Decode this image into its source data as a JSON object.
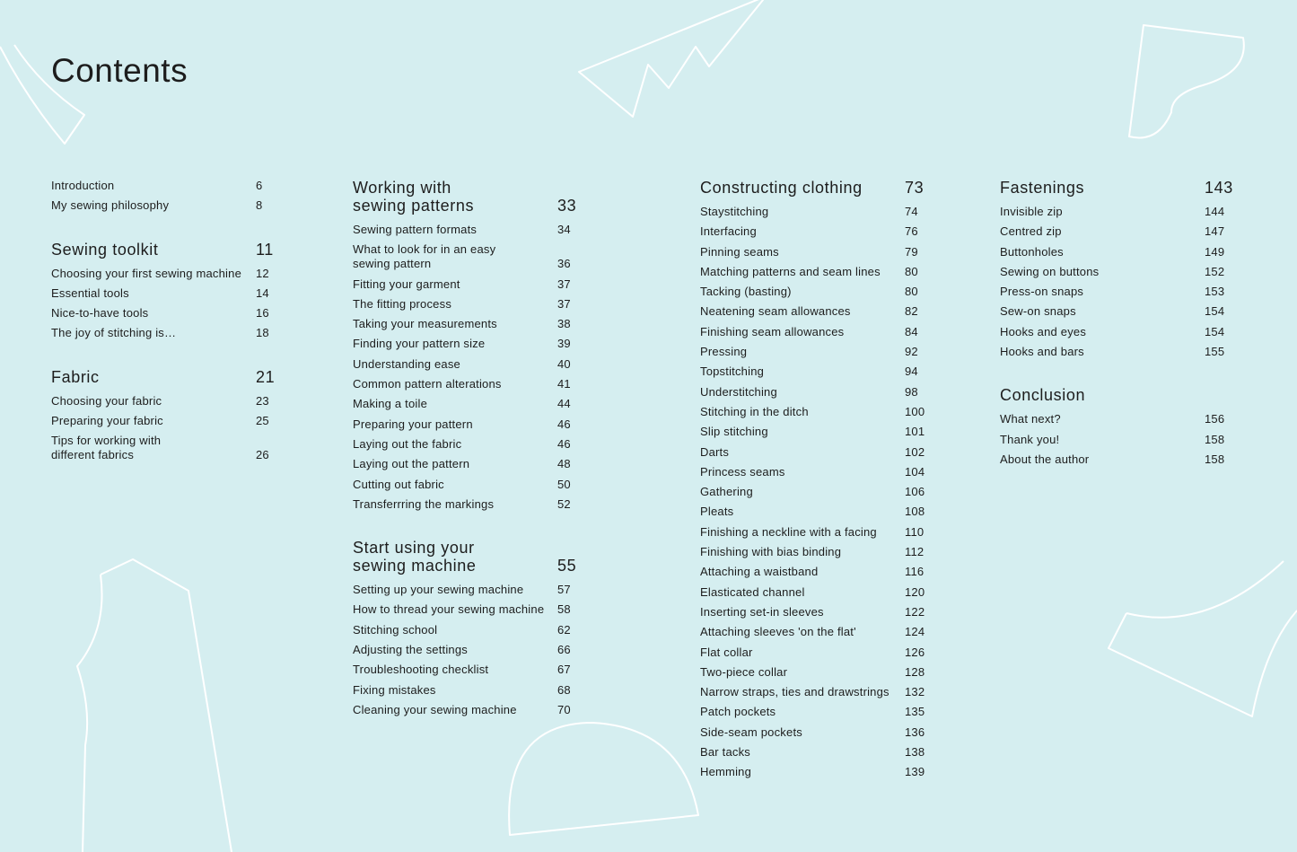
{
  "title": "Contents",
  "columns": [
    {
      "sections": [
        {
          "entries": [
            {
              "label": "Introduction",
              "page": 6
            },
            {
              "label": "My sewing philosophy",
              "page": 8
            }
          ]
        },
        {
          "title": "Sewing toolkit",
          "page": 11,
          "entries": [
            {
              "label": "Choosing your first sewing machine",
              "page": 12
            },
            {
              "label": "Essential tools",
              "page": 14
            },
            {
              "label": "Nice-to-have tools",
              "page": 16
            },
            {
              "label": "The joy of stitching is…",
              "page": 18
            }
          ]
        },
        {
          "title": "Fabric",
          "page": 21,
          "entries": [
            {
              "label": "Choosing your fabric",
              "page": 23
            },
            {
              "label": "Preparing your fabric",
              "page": 25
            },
            {
              "label": "Tips for working with\ndifferent fabrics",
              "page": 26
            }
          ]
        }
      ]
    },
    {
      "sections": [
        {
          "title": "Working with\nsewing patterns",
          "page": 33,
          "entries": [
            {
              "label": "Sewing pattern formats",
              "page": 34
            },
            {
              "label": "What to look for in an easy\nsewing pattern",
              "page": 36
            },
            {
              "label": "Fitting your garment",
              "page": 37
            },
            {
              "label": "The fitting process",
              "page": 37
            },
            {
              "label": "Taking your measurements",
              "page": 38
            },
            {
              "label": "Finding your pattern size",
              "page": 39
            },
            {
              "label": "Understanding ease",
              "page": 40
            },
            {
              "label": "Common pattern alterations",
              "page": 41
            },
            {
              "label": "Making a toile",
              "page": 44
            },
            {
              "label": "Preparing your pattern",
              "page": 46
            },
            {
              "label": "Laying out the fabric",
              "page": 46
            },
            {
              "label": "Laying out the pattern",
              "page": 48
            },
            {
              "label": "Cutting out fabric",
              "page": 50
            },
            {
              "label": "Transferrring the markings",
              "page": 52
            }
          ]
        },
        {
          "title": "Start using your\nsewing machine",
          "page": 55,
          "entries": [
            {
              "label": "Setting up your sewing machine",
              "page": 57
            },
            {
              "label": "How to thread your sewing machine",
              "page": 58
            },
            {
              "label": "Stitching school",
              "page": 62
            },
            {
              "label": "Adjusting the settings",
              "page": 66
            },
            {
              "label": "Troubleshooting checklist",
              "page": 67
            },
            {
              "label": "Fixing mistakes",
              "page": 68
            },
            {
              "label": "Cleaning your sewing machine",
              "page": 70
            }
          ]
        }
      ]
    },
    {
      "sections": [
        {
          "title": "Constructing clothing",
          "page": 73,
          "entries": [
            {
              "label": "Staystitching",
              "page": 74
            },
            {
              "label": "Interfacing",
              "page": 76
            },
            {
              "label": "Pinning seams",
              "page": 79
            },
            {
              "label": "Matching patterns and seam lines",
              "page": 80
            },
            {
              "label": "Tacking (basting)",
              "page": 80
            },
            {
              "label": "Neatening seam allowances",
              "page": 82
            },
            {
              "label": "Finishing seam allowances",
              "page": 84
            },
            {
              "label": "Pressing",
              "page": 92
            },
            {
              "label": "Topstitching",
              "page": 94
            },
            {
              "label": "Understitching",
              "page": 98
            },
            {
              "label": "Stitching in the ditch",
              "page": 100
            },
            {
              "label": "Slip stitching",
              "page": 101
            },
            {
              "label": "Darts",
              "page": 102
            },
            {
              "label": "Princess seams",
              "page": 104
            },
            {
              "label": "Gathering",
              "page": 106
            },
            {
              "label": "Pleats",
              "page": 108
            },
            {
              "label": "Finishing a neckline with a facing",
              "page": 110
            },
            {
              "label": "Finishing with bias binding",
              "page": 112
            },
            {
              "label": "Attaching a waistband",
              "page": 116
            },
            {
              "label": "Elasticated channel",
              "page": 120
            },
            {
              "label": "Inserting set-in sleeves",
              "page": 122
            },
            {
              "label": "Attaching sleeves 'on the flat'",
              "page": 124
            },
            {
              "label": "Flat collar",
              "page": 126
            },
            {
              "label": "Two-piece collar",
              "page": 128
            },
            {
              "label": "Narrow straps, ties and drawstrings",
              "page": 132
            },
            {
              "label": "Patch pockets",
              "page": 135
            },
            {
              "label": "Side-seam pockets",
              "page": 136
            },
            {
              "label": "Bar tacks",
              "page": 138
            },
            {
              "label": "Hemming",
              "page": 139
            }
          ]
        }
      ]
    },
    {
      "sections": [
        {
          "title": "Fastenings",
          "page": 143,
          "entries": [
            {
              "label": "Invisible zip",
              "page": 144
            },
            {
              "label": "Centred zip",
              "page": 147
            },
            {
              "label": "Buttonholes",
              "page": 149
            },
            {
              "label": "Sewing on buttons",
              "page": 152
            },
            {
              "label": "Press-on snaps",
              "page": 153
            },
            {
              "label": "Sew-on snaps",
              "page": 154
            },
            {
              "label": "Hooks and eyes",
              "page": 154
            },
            {
              "label": "Hooks and bars",
              "page": 155
            }
          ]
        },
        {
          "title": "Conclusion",
          "entries": [
            {
              "label": "What next?",
              "page": 156
            },
            {
              "label": "Thank you!",
              "page": 158
            },
            {
              "label": "About the author",
              "page": 158
            }
          ]
        }
      ]
    }
  ]
}
